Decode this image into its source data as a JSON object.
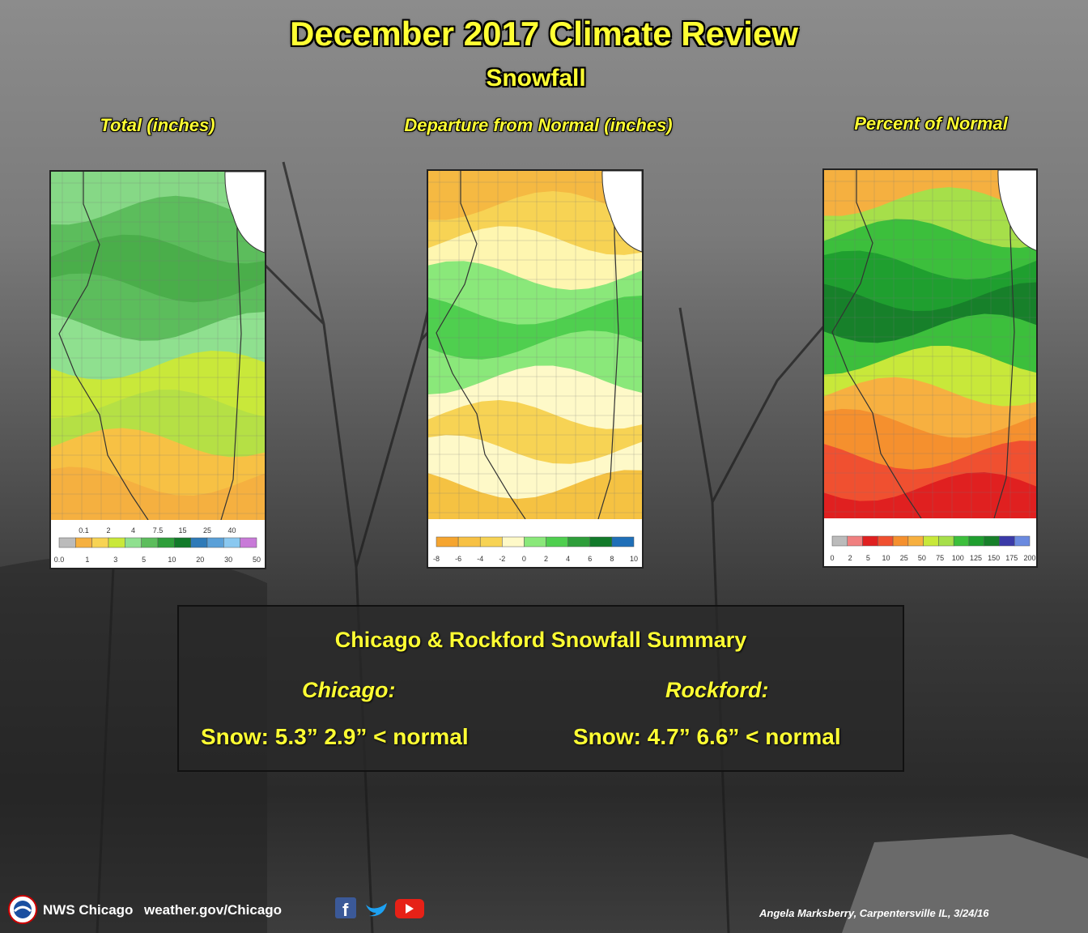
{
  "header": {
    "title": "December 2017 Climate Review",
    "subtitle": "Snowfall"
  },
  "maps": [
    {
      "title": "Total (inches)",
      "legend_top": [
        "0.1",
        "2",
        "4",
        "7.5",
        "15",
        "25",
        "40"
      ],
      "legend_bottom": [
        "0.0",
        "1",
        "3",
        "5",
        "10",
        "20",
        "30",
        "50"
      ]
    },
    {
      "title": "Departure from Normal (inches)",
      "legend_bottom": [
        "-8",
        "-6",
        "-4",
        "-2",
        "0",
        "2",
        "4",
        "6",
        "8",
        "10"
      ]
    },
    {
      "title": "Percent of Normal",
      "legend_bottom": [
        "0",
        "2",
        "5",
        "10",
        "25",
        "50",
        "75",
        "100",
        "125",
        "150",
        "175",
        "200"
      ]
    }
  ],
  "summary": {
    "title": "Chicago & Rockford Snowfall Summary",
    "cities": [
      {
        "name": "Chicago:",
        "text": "Snow:  5.3”  2.9” < normal"
      },
      {
        "name": "Rockford:",
        "text": "Snow: 4.7”  6.6” < normal"
      }
    ]
  },
  "footer": {
    "org": "NWS Chicago",
    "url": "weather.gov/Chicago",
    "credit": "Angela Marksberry, Carpentersville IL,  3/24/16"
  }
}
